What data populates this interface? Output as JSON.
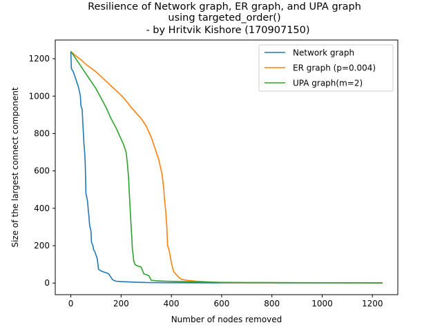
{
  "chart_data": {
    "type": "line",
    "title_lines": [
      "Resilience of Network graph, ER graph, and UPA graph",
      "using targeted_order()",
      "- by Hritvik Kishore (170907150)"
    ],
    "xlabel": "Number of nodes removed",
    "ylabel": "Size of the largest connect component",
    "xlim": [
      -62,
      1301
    ],
    "ylim": [
      -62,
      1300
    ],
    "xticks": [
      0,
      200,
      400,
      600,
      800,
      1000,
      1200
    ],
    "yticks": [
      0,
      200,
      400,
      600,
      800,
      1000,
      1200
    ],
    "grid": false,
    "legend_position": "top-right",
    "series": [
      {
        "name": "Network graph",
        "color": "#1f77b4",
        "points": [
          [
            0,
            1239
          ],
          [
            2,
            1150
          ],
          [
            5,
            1140
          ],
          [
            10,
            1130
          ],
          [
            15,
            1110
          ],
          [
            20,
            1090
          ],
          [
            25,
            1070
          ],
          [
            30,
            1050
          ],
          [
            35,
            1020
          ],
          [
            38,
            1000
          ],
          [
            40,
            950
          ],
          [
            45,
            930
          ],
          [
            48,
            850
          ],
          [
            50,
            800
          ],
          [
            52,
            750
          ],
          [
            55,
            700
          ],
          [
            57,
            650
          ],
          [
            58,
            600
          ],
          [
            59,
            550
          ],
          [
            60,
            480
          ],
          [
            63,
            460
          ],
          [
            65,
            450
          ],
          [
            67,
            430
          ],
          [
            70,
            380
          ],
          [
            72,
            360
          ],
          [
            74,
            320
          ],
          [
            76,
            300
          ],
          [
            80,
            280
          ],
          [
            82,
            220
          ],
          [
            85,
            210
          ],
          [
            88,
            200
          ],
          [
            90,
            180
          ],
          [
            95,
            170
          ],
          [
            100,
            150
          ],
          [
            103,
            140
          ],
          [
            105,
            130
          ],
          [
            108,
            100
          ],
          [
            110,
            75
          ],
          [
            115,
            70
          ],
          [
            120,
            65
          ],
          [
            130,
            60
          ],
          [
            140,
            55
          ],
          [
            150,
            50
          ],
          [
            155,
            40
          ],
          [
            160,
            30
          ],
          [
            165,
            20
          ],
          [
            170,
            15
          ],
          [
            180,
            10
          ],
          [
            200,
            8
          ],
          [
            250,
            5
          ],
          [
            300,
            3
          ],
          [
            400,
            2
          ],
          [
            600,
            1
          ],
          [
            1240,
            1
          ]
        ]
      },
      {
        "name": "ER graph (p=0.004)",
        "color": "#ff7f0e",
        "points": [
          [
            0,
            1239
          ],
          [
            20,
            1215
          ],
          [
            40,
            1195
          ],
          [
            60,
            1170
          ],
          [
            80,
            1150
          ],
          [
            100,
            1130
          ],
          [
            120,
            1105
          ],
          [
            140,
            1080
          ],
          [
            160,
            1055
          ],
          [
            180,
            1030
          ],
          [
            200,
            1005
          ],
          [
            220,
            975
          ],
          [
            240,
            940
          ],
          [
            260,
            910
          ],
          [
            280,
            880
          ],
          [
            300,
            840
          ],
          [
            310,
            810
          ],
          [
            320,
            780
          ],
          [
            330,
            740
          ],
          [
            340,
            700
          ],
          [
            350,
            660
          ],
          [
            355,
            630
          ],
          [
            360,
            600
          ],
          [
            365,
            560
          ],
          [
            370,
            500
          ],
          [
            372,
            460
          ],
          [
            375,
            420
          ],
          [
            378,
            380
          ],
          [
            380,
            330
          ],
          [
            382,
            300
          ],
          [
            385,
            200
          ],
          [
            390,
            180
          ],
          [
            395,
            150
          ],
          [
            400,
            110
          ],
          [
            405,
            80
          ],
          [
            410,
            60
          ],
          [
            420,
            45
          ],
          [
            430,
            30
          ],
          [
            440,
            20
          ],
          [
            460,
            15
          ],
          [
            500,
            10
          ],
          [
            550,
            6
          ],
          [
            600,
            3
          ],
          [
            700,
            2
          ],
          [
            1240,
            1
          ]
        ]
      },
      {
        "name": "UPA graph(m=2)",
        "color": "#2ca02c",
        "points": [
          [
            0,
            1239
          ],
          [
            20,
            1200
          ],
          [
            40,
            1160
          ],
          [
            60,
            1120
          ],
          [
            80,
            1080
          ],
          [
            100,
            1040
          ],
          [
            120,
            990
          ],
          [
            140,
            940
          ],
          [
            160,
            880
          ],
          [
            180,
            830
          ],
          [
            200,
            770
          ],
          [
            210,
            740
          ],
          [
            220,
            700
          ],
          [
            225,
            640
          ],
          [
            230,
            560
          ],
          [
            232,
            500
          ],
          [
            235,
            420
          ],
          [
            238,
            350
          ],
          [
            240,
            300
          ],
          [
            242,
            260
          ],
          [
            245,
            180
          ],
          [
            248,
            150
          ],
          [
            250,
            120
          ],
          [
            255,
            100
          ],
          [
            260,
            95
          ],
          [
            270,
            90
          ],
          [
            280,
            85
          ],
          [
            290,
            50
          ],
          [
            300,
            45
          ],
          [
            310,
            40
          ],
          [
            320,
            15
          ],
          [
            340,
            12
          ],
          [
            380,
            10
          ],
          [
            450,
            8
          ],
          [
            500,
            6
          ],
          [
            600,
            4
          ],
          [
            700,
            3
          ],
          [
            900,
            2
          ],
          [
            1240,
            1
          ]
        ]
      }
    ]
  }
}
